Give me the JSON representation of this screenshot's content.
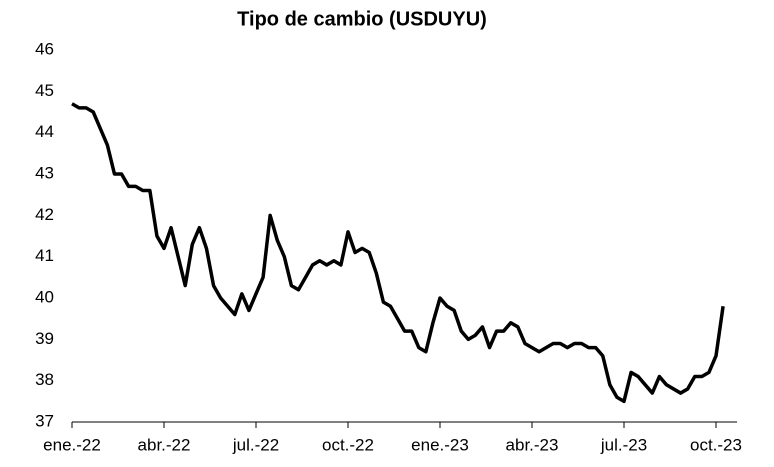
{
  "chart_data": {
    "type": "line",
    "title": "Tipo de cambio (USDUYU)",
    "categories": [
      "ene.-22",
      null,
      null,
      null,
      null,
      null,
      null,
      null,
      null,
      null,
      null,
      null,
      null,
      "abr.-22",
      null,
      null,
      null,
      null,
      null,
      null,
      null,
      null,
      null,
      null,
      null,
      null,
      "jul.-22",
      null,
      null,
      null,
      null,
      null,
      null,
      null,
      null,
      null,
      null,
      null,
      null,
      "oct.-22",
      null,
      null,
      null,
      null,
      null,
      null,
      null,
      null,
      null,
      null,
      null,
      null,
      "ene.-23",
      null,
      null,
      null,
      null,
      null,
      null,
      null,
      null,
      null,
      null,
      null,
      null,
      "abr.-23",
      null,
      null,
      null,
      null,
      null,
      null,
      null,
      null,
      null,
      null,
      null,
      null,
      "jul.-23",
      null,
      null,
      null,
      null,
      null,
      null,
      null,
      null,
      null,
      null,
      null,
      null,
      "oct.-23",
      null
    ],
    "values": [
      44.7,
      44.6,
      44.6,
      44.5,
      44.1,
      43.7,
      43.0,
      43.0,
      42.7,
      42.7,
      42.6,
      42.6,
      41.5,
      41.2,
      41.7,
      41.0,
      40.3,
      41.3,
      41.7,
      41.2,
      40.3,
      40.0,
      39.8,
      39.6,
      40.1,
      39.7,
      40.1,
      40.5,
      42.0,
      41.4,
      41.0,
      40.3,
      40.2,
      40.5,
      40.8,
      40.9,
      40.8,
      40.9,
      40.8,
      41.6,
      41.1,
      41.2,
      41.1,
      40.6,
      39.9,
      39.8,
      39.5,
      39.2,
      39.2,
      38.8,
      38.7,
      39.4,
      40.0,
      39.8,
      39.7,
      39.2,
      39.0,
      39.1,
      39.3,
      38.8,
      39.2,
      39.2,
      39.4,
      39.3,
      38.9,
      38.8,
      38.7,
      38.8,
      38.9,
      38.9,
      38.8,
      38.9,
      38.9,
      38.8,
      38.8,
      38.6,
      37.9,
      37.6,
      37.5,
      38.2,
      38.1,
      37.9,
      37.7,
      38.1,
      37.9,
      37.8,
      37.7,
      37.8,
      38.1,
      38.1,
      38.2,
      38.6,
      39.8
    ],
    "color": "#000000",
    "ylim": [
      37,
      46
    ],
    "yticks": [
      37,
      38,
      39,
      40,
      41,
      42,
      43,
      44,
      45,
      46
    ],
    "grid": false
  }
}
